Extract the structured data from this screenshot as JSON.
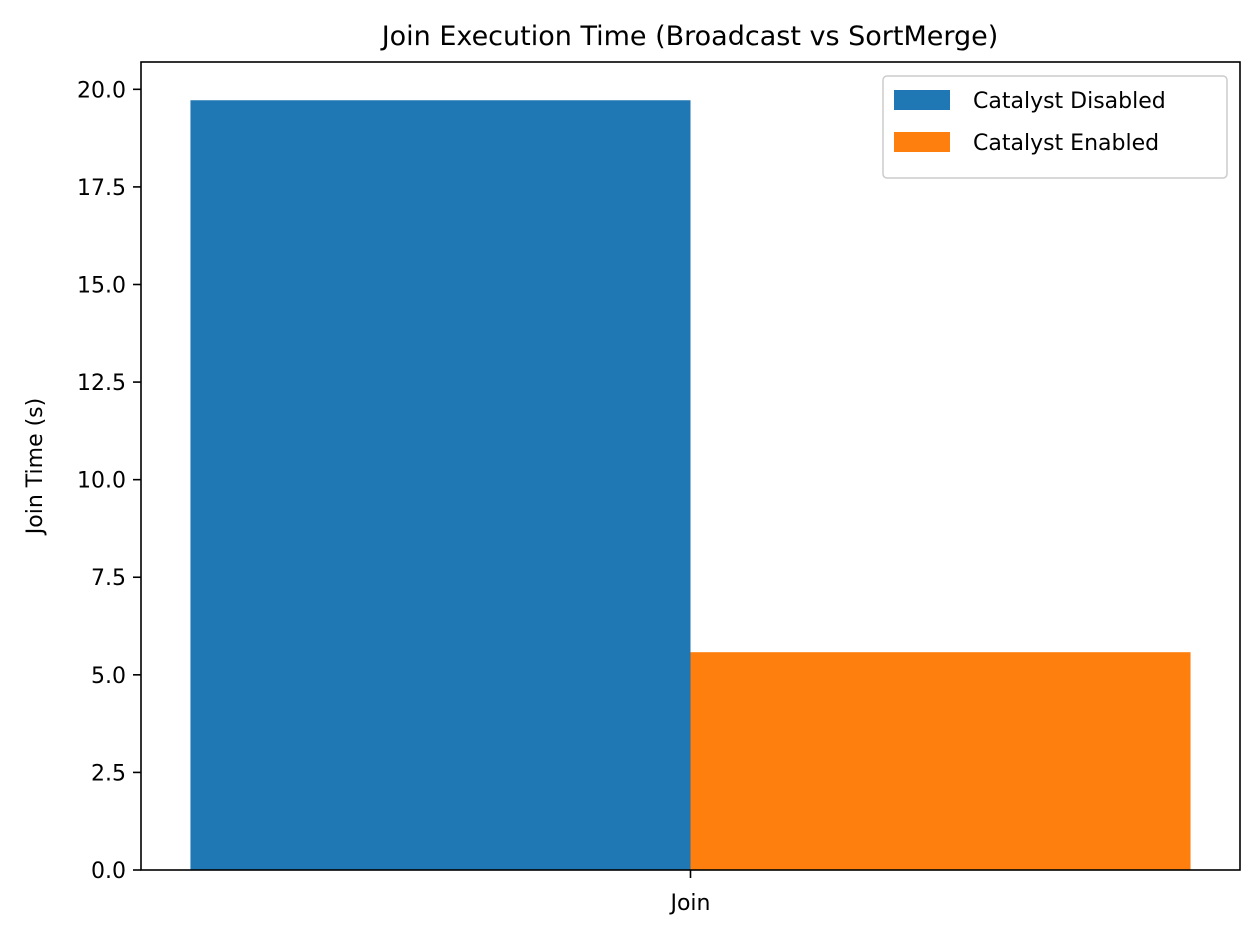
{
  "chart_data": {
    "type": "bar",
    "title": "Join Execution Time (Broadcast vs SortMerge)",
    "xlabel": "",
    "ylabel": "Join Time (s)",
    "categories": [
      "Join"
    ],
    "series": [
      {
        "name": "Catalyst Disabled",
        "values": [
          19.72
        ],
        "color": "#1f77b4"
      },
      {
        "name": "Catalyst Enabled",
        "values": [
          5.58
        ],
        "color": "#ff7f0e"
      }
    ],
    "ylim": [
      0,
      20.7
    ],
    "yticks": [
      "0.0",
      "2.5",
      "5.0",
      "7.5",
      "10.0",
      "12.5",
      "15.0",
      "17.5",
      "20.0"
    ],
    "grid": false,
    "legend_position": "top-right"
  }
}
